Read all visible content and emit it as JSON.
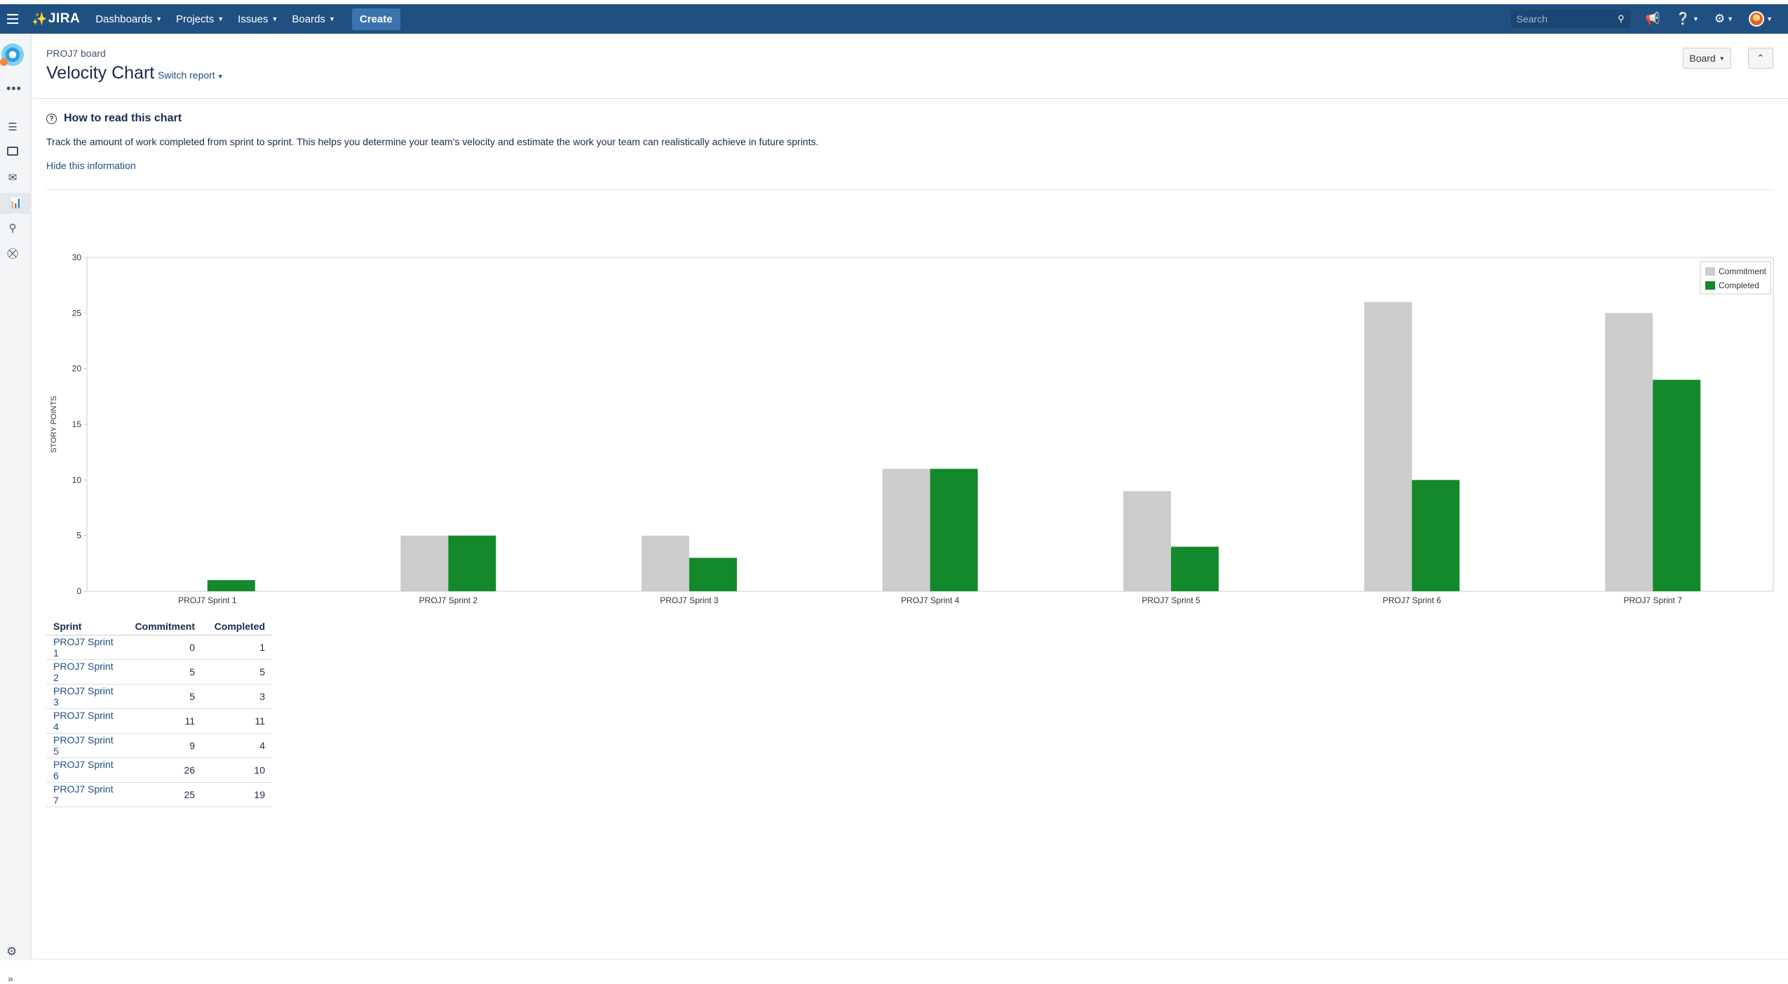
{
  "topnav": {
    "logo": "JIRA",
    "menu": [
      {
        "label": "Dashboards"
      },
      {
        "label": "Projects"
      },
      {
        "label": "Issues"
      },
      {
        "label": "Boards"
      }
    ],
    "create_label": "Create",
    "search_placeholder": "Search",
    "brand_color": "#205081"
  },
  "sidebar": {
    "icons": [
      "backlog-icon",
      "board-icon",
      "releases-icon",
      "reports-icon",
      "issues-icon",
      "components-icon"
    ],
    "active": "reports-icon"
  },
  "header": {
    "breadcrumb": "PROJ7 board",
    "title": "Velocity Chart",
    "switch_report": "Switch report",
    "board_button": "Board"
  },
  "info": {
    "title": "How to read this chart",
    "text": "Track the amount of work completed from sprint to sprint. This helps you determine your team's velocity and estimate the work your team can realistically achieve in future sprints.",
    "hide_link": "Hide this information"
  },
  "chart_data": {
    "type": "bar",
    "ylabel": "STORY POINTS",
    "xlabel": "",
    "ylim": [
      0,
      30
    ],
    "yticks": [
      0,
      5,
      10,
      15,
      20,
      25,
      30
    ],
    "grid": false,
    "legend_position": "top-right",
    "categories": [
      "PROJ7 Sprint 1",
      "PROJ7 Sprint 2",
      "PROJ7 Sprint 3",
      "PROJ7 Sprint 4",
      "PROJ7 Sprint 5",
      "PROJ7 Sprint 6",
      "PROJ7 Sprint 7"
    ],
    "series": [
      {
        "name": "Commitment",
        "color": "#cccccc",
        "values": [
          0,
          5,
          5,
          11,
          9,
          26,
          25
        ]
      },
      {
        "name": "Completed",
        "color": "#14892c",
        "values": [
          1,
          5,
          3,
          11,
          4,
          10,
          19
        ]
      }
    ]
  },
  "table": {
    "headers": [
      "Sprint",
      "Commitment",
      "Completed"
    ],
    "rows": [
      [
        "PROJ7 Sprint 1",
        "0",
        "1"
      ],
      [
        "PROJ7 Sprint 2",
        "5",
        "5"
      ],
      [
        "PROJ7 Sprint 3",
        "5",
        "3"
      ],
      [
        "PROJ7 Sprint 4",
        "11",
        "11"
      ],
      [
        "PROJ7 Sprint 5",
        "9",
        "4"
      ],
      [
        "PROJ7 Sprint 6",
        "26",
        "10"
      ],
      [
        "PROJ7 Sprint 7",
        "25",
        "19"
      ]
    ]
  }
}
